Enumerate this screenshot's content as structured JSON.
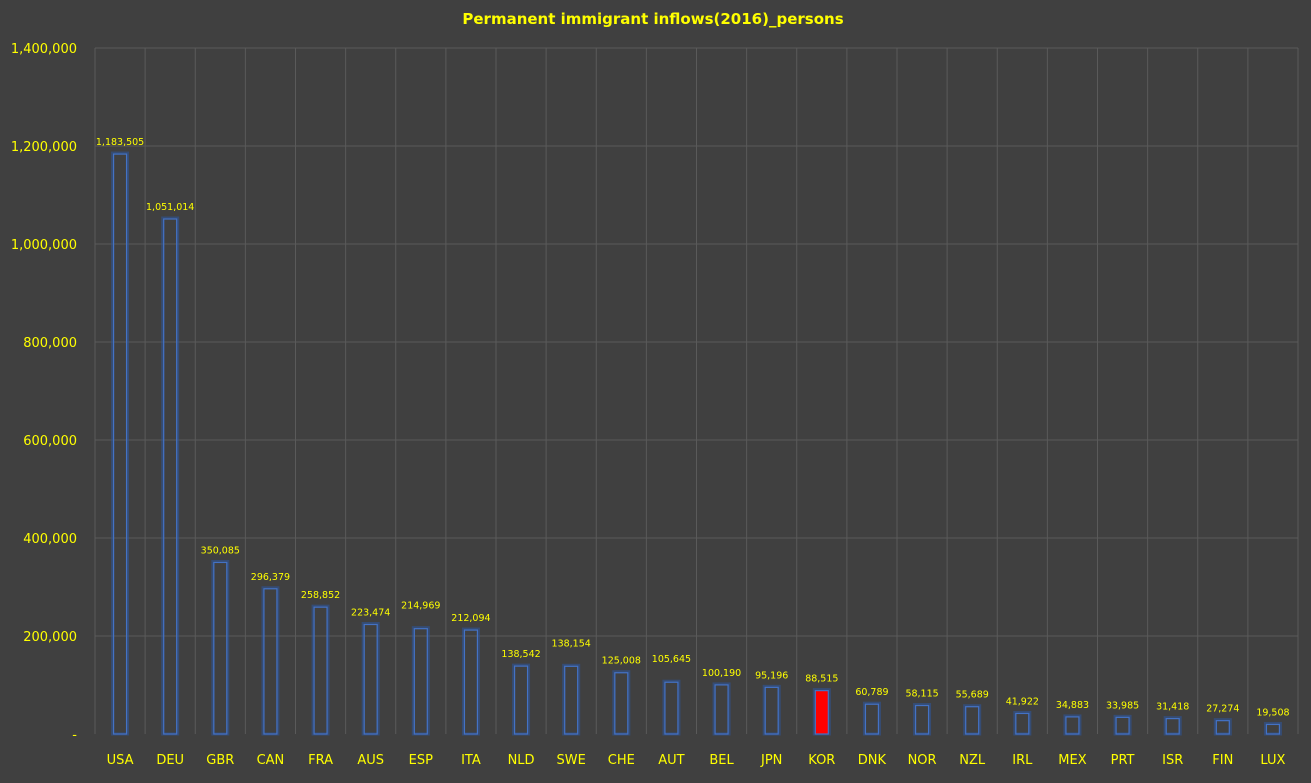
{
  "chart_data": {
    "type": "bar",
    "title": "Permanent immigrant inflows(2016)_persons",
    "xlabel": "",
    "ylabel": "",
    "categories": [
      "USA",
      "DEU",
      "GBR",
      "CAN",
      "FRA",
      "AUS",
      "ESP",
      "ITA",
      "NLD",
      "SWE",
      "CHE",
      "AUT",
      "BEL",
      "JPN",
      "KOR",
      "DNK",
      "NOR",
      "NZL",
      "IRL",
      "MEX",
      "PRT",
      "ISR",
      "FIN",
      "LUX"
    ],
    "values": [
      1183505,
      1051014,
      350085,
      296379,
      258852,
      223474,
      214969,
      212094,
      138542,
      138154,
      125008,
      105645,
      100190,
      95196,
      88515,
      60789,
      58115,
      55689,
      41922,
      34883,
      33985,
      31418,
      27274,
      19508
    ],
    "data_labels": [
      "1,183,505",
      "1,051,014",
      "350,085",
      "296,379",
      "258,852",
      "223,474",
      "214,969",
      "212,094",
      "138,542",
      "138,154",
      "125,008",
      "105,645",
      "100,190",
      "95,196",
      "88,515",
      "60,789",
      "58,115",
      "55,689",
      "41,922",
      "34,883",
      "33,985",
      "31,418",
      "27,274",
      "19,508"
    ],
    "ylim": [
      0,
      1400000
    ],
    "y_ticks": [
      0,
      200000,
      400000,
      600000,
      800000,
      1000000,
      1200000,
      1400000
    ],
    "y_tick_labels": [
      "-",
      "200,000",
      "400,000",
      "600,000",
      "800,000",
      "1,000,000",
      "1,200,000",
      "1,400,000"
    ],
    "grid": true,
    "highlight_category": "KOR",
    "colors": {
      "background": "#404040",
      "gridline": "#5a5a5a",
      "bar_outline": "#4472c4",
      "bar_glow": "#2f5597",
      "highlight_fill": "#ff0000",
      "text": "#ffff00"
    }
  }
}
